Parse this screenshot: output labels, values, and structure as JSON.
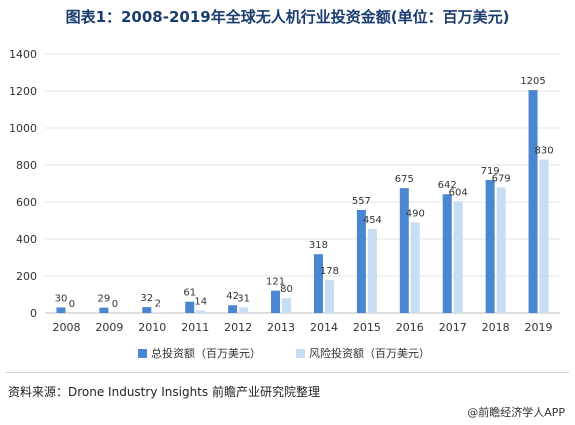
{
  "title": "图表1：2008-2019年全球无人机行业投资金额(单位：百万美元)",
  "source": "资料来源：Drone Industry Insights 前瞻产业研究院整理",
  "footer": "@前瞻经济学人APP",
  "colors": {
    "total": "#4a86d1",
    "venture": "#c7ddf3",
    "grid": "#e3e3e3",
    "axis": "#333333"
  },
  "chart_data": {
    "type": "bar",
    "categories": [
      "2008",
      "2009",
      "2010",
      "2011",
      "2012",
      "2013",
      "2014",
      "2015",
      "2016",
      "2017",
      "2018",
      "2019"
    ],
    "series": [
      {
        "name": "总投资额（百万美元）",
        "values": [
          30,
          29,
          32,
          61,
          42,
          121,
          318,
          557,
          675,
          642,
          719,
          1205
        ]
      },
      {
        "name": "风险投资额（百万美元）",
        "values": [
          0,
          0,
          2,
          14,
          31,
          80,
          178,
          454,
          490,
          604,
          679,
          830
        ]
      }
    ],
    "ylim": [
      0,
      1400
    ],
    "yticks": [
      0,
      200,
      400,
      600,
      800,
      1000,
      1200,
      1400
    ],
    "grid": true,
    "legend_position": "bottom"
  }
}
